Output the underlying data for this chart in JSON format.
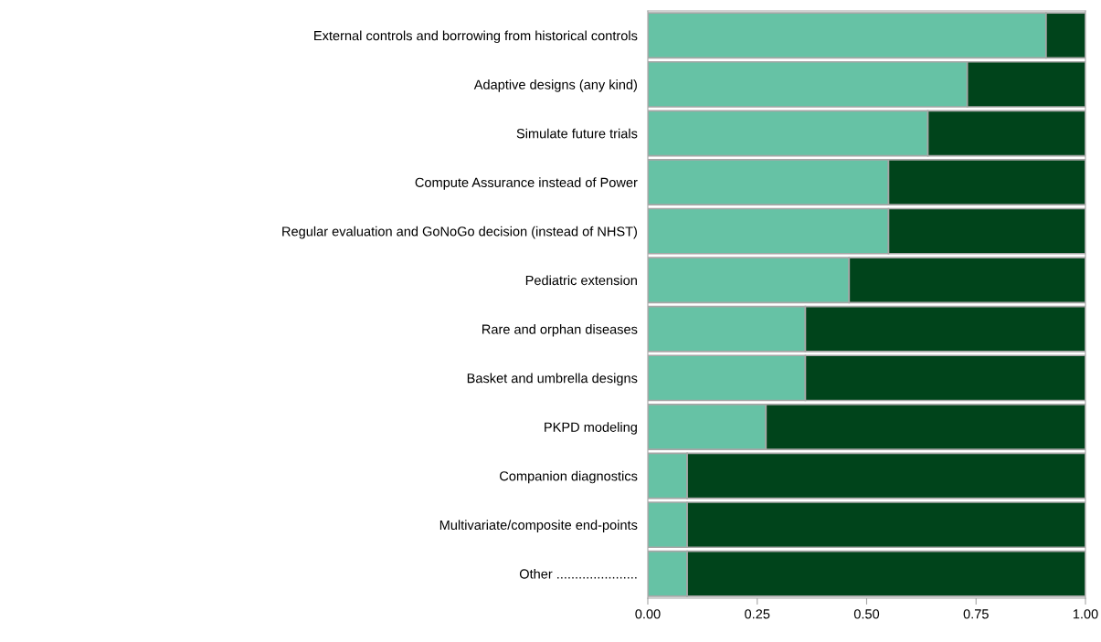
{
  "chart_data": {
    "type": "bar",
    "orientation": "horizontal",
    "stacked": true,
    "categories": [
      "External controls and borrowing from historical controls",
      "Adaptive designs (any kind)",
      "Simulate future trials",
      "Compute Assurance instead of Power",
      "Regular evaluation and GoNoGo decision (instead of NHST)",
      "Pediatric extension",
      "Rare and orphan diseases",
      "Basket and umbrella designs",
      "PKPD modeling",
      "Companion diagnostics",
      "Multivariate/composite end-points",
      "Other ......................"
    ],
    "series": [
      {
        "color": "#66c2a5",
        "values": [
          0.91,
          0.73,
          0.64,
          0.55,
          0.55,
          0.46,
          0.36,
          0.36,
          0.27,
          0.09,
          0.09,
          0.09
        ]
      },
      {
        "color": "#00441b",
        "values": [
          0.09,
          0.27,
          0.36,
          0.45,
          0.45,
          0.54,
          0.64,
          0.64,
          0.73,
          0.91,
          0.91,
          0.91
        ]
      }
    ],
    "xlim": [
      0,
      1
    ],
    "xticks": [
      {
        "value": 0,
        "label": "0.00"
      },
      {
        "value": 0.25,
        "label": "0.25"
      },
      {
        "value": 0.5,
        "label": "0.50"
      },
      {
        "value": 0.75,
        "label": "0.75"
      },
      {
        "value": 1,
        "label": "1.00"
      }
    ],
    "grid": false,
    "legend": false
  }
}
